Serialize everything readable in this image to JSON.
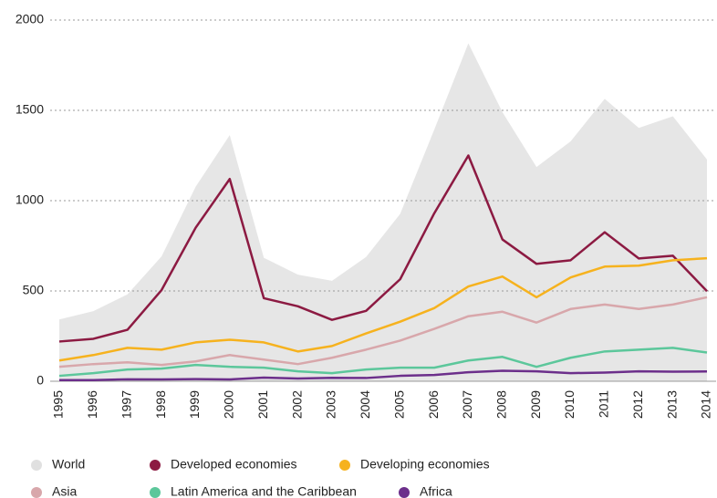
{
  "chart_data": {
    "type": "line",
    "categories": [
      "1995",
      "1996",
      "1997",
      "1998",
      "1999",
      "2000",
      "2001",
      "2002",
      "2003",
      "2004",
      "2005",
      "2006",
      "2007",
      "2008",
      "2009",
      "2010",
      "2011",
      "2012",
      "2013",
      "2014"
    ],
    "series": [
      {
        "name": "World",
        "color": "#e6e6e6",
        "kind": "area",
        "values": [
          342,
          388,
          481,
          691,
          1077,
          1363,
          684,
          590,
          556,
          688,
          927,
          1393,
          1871,
          1490,
          1186,
          1328,
          1564,
          1403,
          1467,
          1228
        ]
      },
      {
        "name": "Developed economies",
        "color": "#8c1a42",
        "values": [
          220,
          235,
          285,
          505,
          850,
          1120,
          460,
          415,
          340,
          390,
          565,
          930,
          1250,
          785,
          650,
          670,
          825,
          680,
          695,
          499
        ]
      },
      {
        "name": "Developing economies",
        "color": "#f6b21e",
        "values": [
          115,
          145,
          185,
          175,
          215,
          230,
          215,
          165,
          195,
          265,
          330,
          405,
          525,
          580,
          465,
          575,
          635,
          640,
          670,
          681
        ]
      },
      {
        "name": "Asia",
        "color": "#d8a7ab",
        "values": [
          80,
          95,
          105,
          90,
          110,
          145,
          120,
          95,
          130,
          175,
          225,
          290,
          360,
          385,
          325,
          400,
          425,
          400,
          425,
          465
        ]
      },
      {
        "name": "Latin America and the Caribbean",
        "color": "#5cc79b",
        "values": [
          30,
          45,
          65,
          70,
          90,
          80,
          75,
          55,
          45,
          65,
          75,
          75,
          115,
          135,
          80,
          130,
          165,
          175,
          185,
          159
        ]
      },
      {
        "name": "Africa",
        "color": "#6c2f8b",
        "values": [
          6,
          6,
          11,
          10,
          12,
          10,
          20,
          15,
          19,
          18,
          30,
          35,
          50,
          58,
          55,
          45,
          48,
          55,
          53,
          54
        ]
      }
    ],
    "ylim": [
      0,
      2000
    ],
    "yticks": [
      0,
      500,
      1000,
      1500,
      2000
    ],
    "grid": true
  }
}
